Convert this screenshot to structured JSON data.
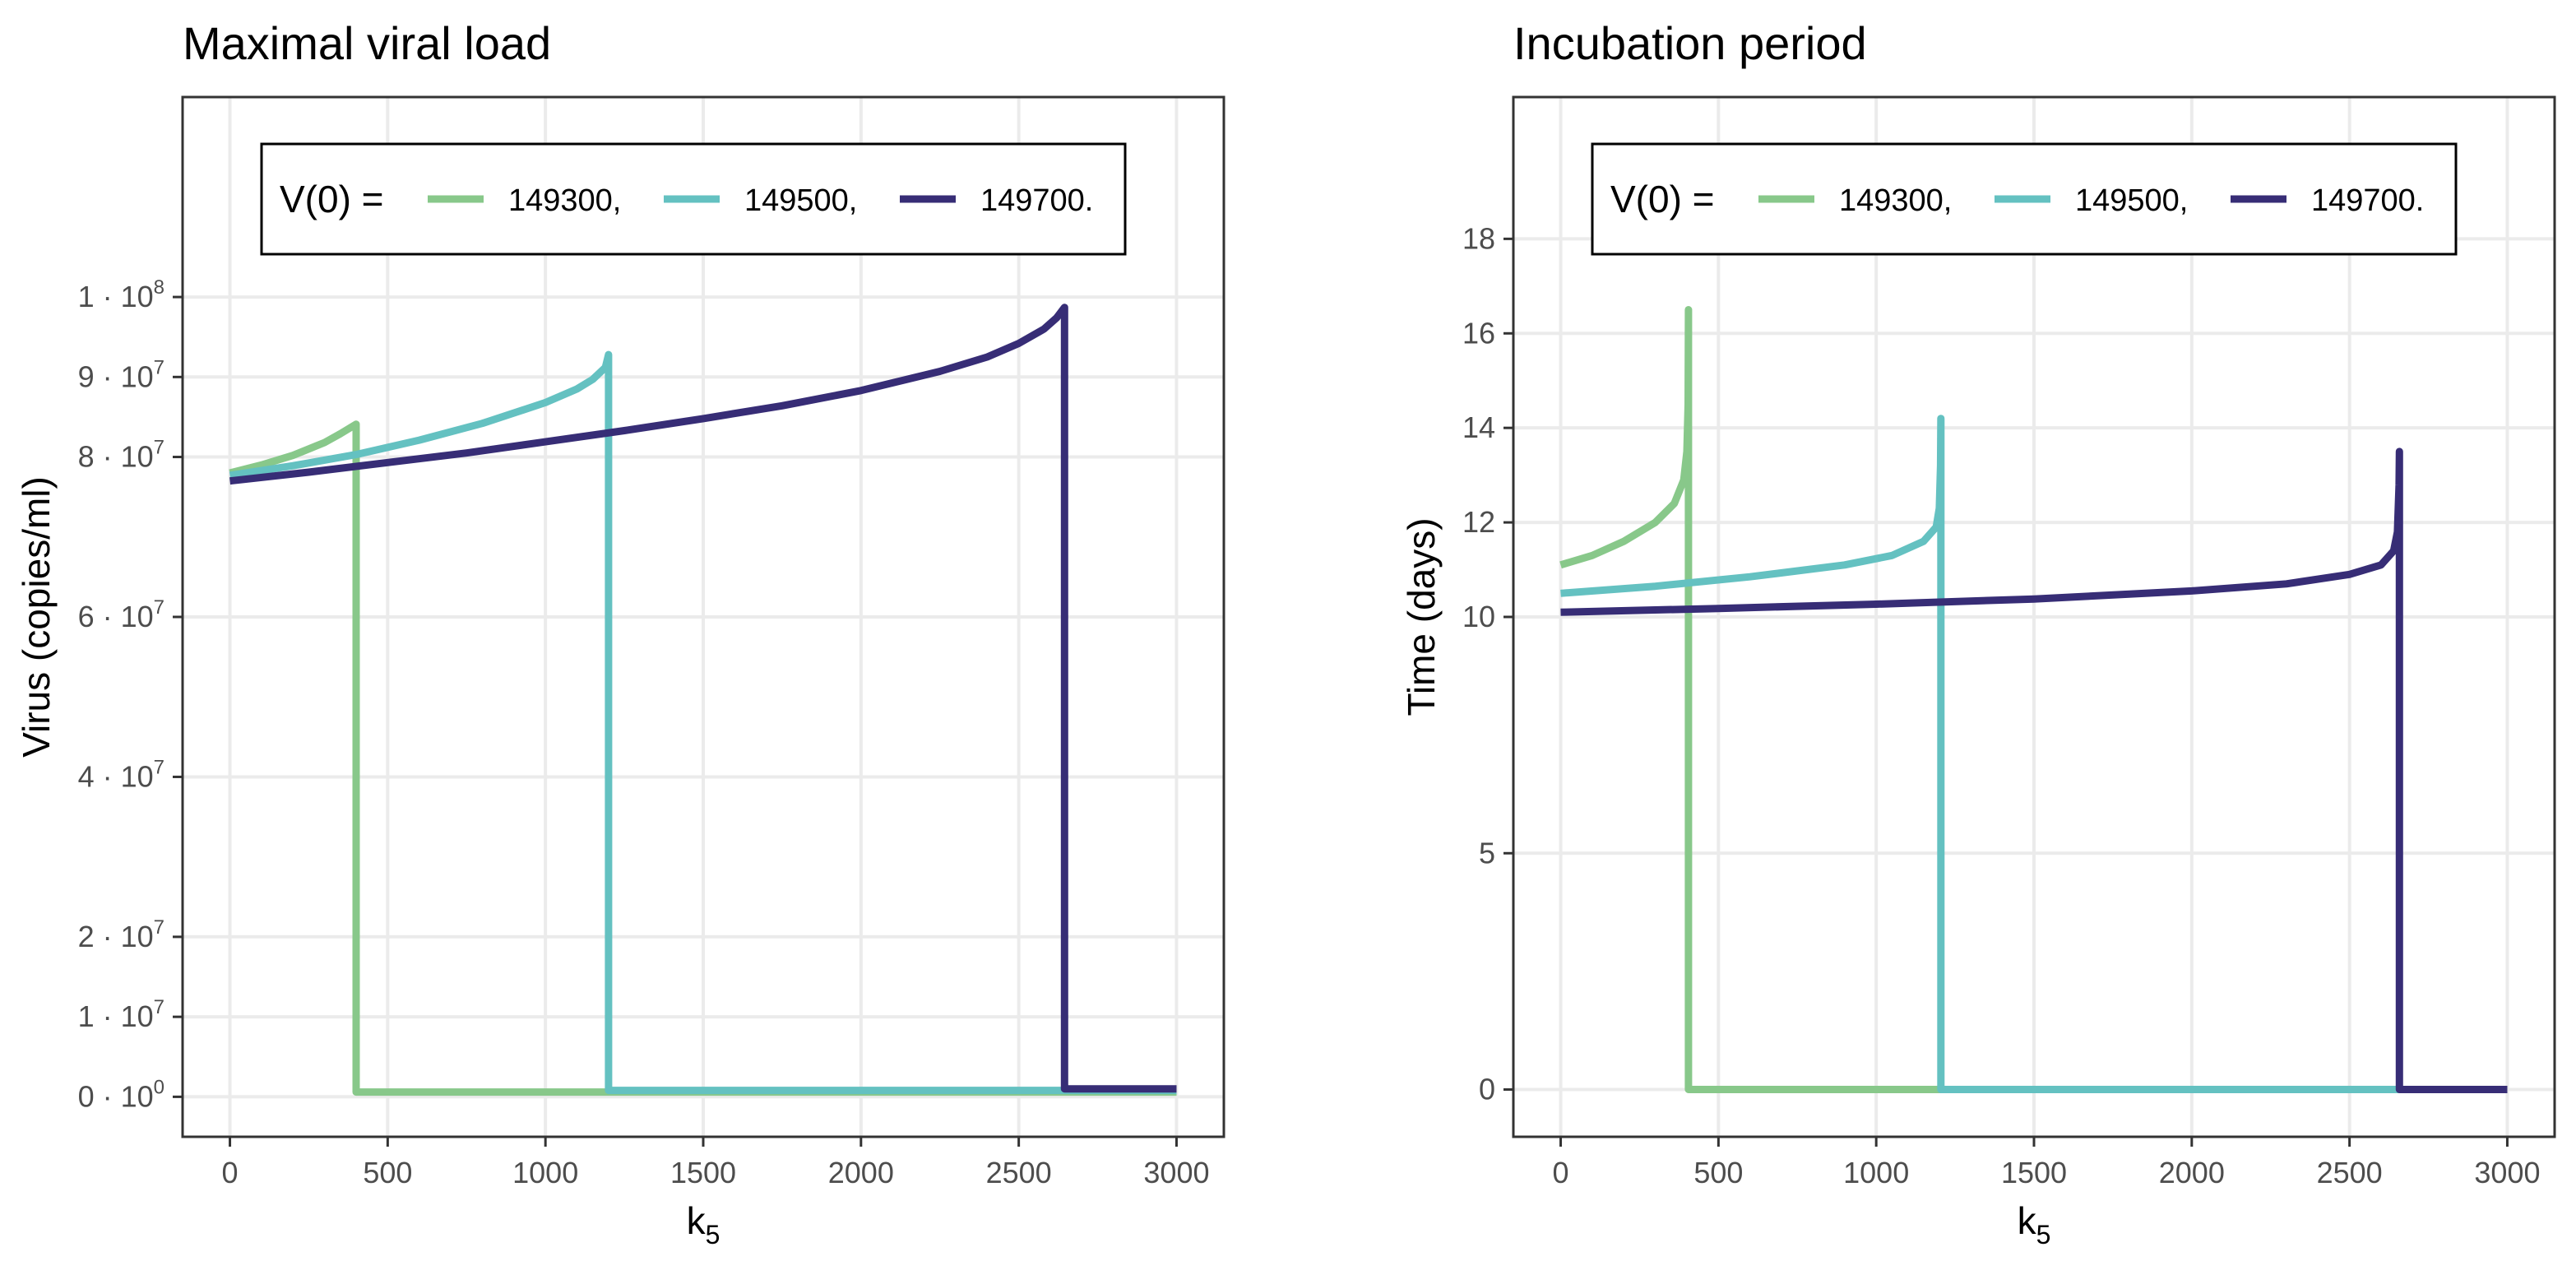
{
  "chart_data": [
    {
      "type": "line",
      "title": "Maximal viral load",
      "xlabel": "k",
      "xlabel_sub": "5",
      "ylabel": "Virus (copies/ml)",
      "xlim": [
        -150,
        3150
      ],
      "ylim": [
        -5000000,
        125000000
      ],
      "x_ticks": [
        0,
        500,
        1000,
        1500,
        2000,
        2500,
        3000
      ],
      "y_ticks": [
        {
          "value": 0,
          "mant": "0",
          "exp": "0"
        },
        {
          "value": 10000000,
          "mant": "1",
          "exp": "7"
        },
        {
          "value": 20000000,
          "mant": "2",
          "exp": "7"
        },
        {
          "value": 40000000,
          "mant": "4",
          "exp": "7"
        },
        {
          "value": 60000000,
          "mant": "6",
          "exp": "7"
        },
        {
          "value": 80000000,
          "mant": "8",
          "exp": "7"
        },
        {
          "value": 90000000,
          "mant": "9",
          "exp": "7"
        },
        {
          "value": 100000000,
          "mant": "1",
          "exp": "8"
        }
      ],
      "y_tick_dot": "·",
      "y_tick_base": "10",
      "legend": {
        "title": "V(0) =",
        "labels": [
          "149300,",
          "149500,",
          "149700."
        ],
        "position": "top-center"
      },
      "series": [
        {
          "name": "149300",
          "color": "#88c88a",
          "x": [
            0,
            100,
            200,
            300,
            350,
            400,
            400,
            1000,
            3000
          ],
          "y": [
            78000000,
            79000000,
            80200000,
            81800000,
            82900000,
            84100000,
            600000,
            600000,
            600000
          ]
        },
        {
          "name": "149500",
          "color": "#64c1c1",
          "x": [
            0,
            200,
            400,
            600,
            800,
            1000,
            1100,
            1150,
            1190,
            1200,
            1200,
            2000,
            3000
          ],
          "y": [
            77700000,
            78900000,
            80300000,
            82100000,
            84200000,
            86800000,
            88500000,
            89700000,
            91200000,
            92800000,
            800000,
            800000,
            800000
          ]
        },
        {
          "name": "149700",
          "color": "#372d76",
          "x": [
            0,
            250,
            500,
            750,
            1000,
            1250,
            1500,
            1750,
            2000,
            2250,
            2400,
            2500,
            2580,
            2620,
            2645,
            2645,
            2800,
            3000
          ],
          "y": [
            77000000,
            78100000,
            79300000,
            80500000,
            81900000,
            83300000,
            84800000,
            86400000,
            88300000,
            90700000,
            92500000,
            94200000,
            96000000,
            97400000,
            98700000,
            1000000,
            1000000,
            1000000
          ]
        }
      ]
    },
    {
      "type": "line",
      "title": "Incubation period",
      "xlabel": "k",
      "xlabel_sub": "5",
      "ylabel": "Time (days)",
      "xlim": [
        -150,
        3150
      ],
      "ylim": [
        -1,
        21
      ],
      "x_ticks": [
        0,
        500,
        1000,
        1500,
        2000,
        2500,
        3000
      ],
      "y_ticks": [
        {
          "value": 0,
          "label": "0"
        },
        {
          "value": 5,
          "label": "5"
        },
        {
          "value": 10,
          "label": "10"
        },
        {
          "value": 12,
          "label": "12"
        },
        {
          "value": 14,
          "label": "14"
        },
        {
          "value": 16,
          "label": "16"
        },
        {
          "value": 18,
          "label": "18"
        }
      ],
      "legend": {
        "title": "V(0) =",
        "labels": [
          "149300,",
          "149500,",
          "149700."
        ],
        "position": "top-center"
      },
      "series": [
        {
          "name": "149300",
          "color": "#88c88a",
          "x": [
            0,
            100,
            200,
            300,
            360,
            390,
            400,
            404,
            405,
            405,
            1000,
            3000
          ],
          "y": [
            11.1,
            11.3,
            11.6,
            12.0,
            12.4,
            12.9,
            13.5,
            14.5,
            16.5,
            0,
            0,
            0
          ]
        },
        {
          "name": "149500",
          "color": "#64c1c1",
          "x": [
            0,
            300,
            600,
            900,
            1050,
            1150,
            1190,
            1200,
            1204,
            1205,
            1205,
            2000,
            3000
          ],
          "y": [
            10.5,
            10.65,
            10.85,
            11.1,
            11.3,
            11.6,
            11.9,
            12.3,
            13.2,
            14.2,
            0,
            0,
            0
          ]
        },
        {
          "name": "149700",
          "color": "#372d76",
          "x": [
            0,
            500,
            1000,
            1500,
            2000,
            2300,
            2500,
            2600,
            2640,
            2652,
            2657,
            2658,
            2658,
            3000
          ],
          "y": [
            10.1,
            10.18,
            10.27,
            10.38,
            10.55,
            10.7,
            10.9,
            11.1,
            11.4,
            11.8,
            12.8,
            13.5,
            0,
            0
          ]
        }
      ]
    }
  ]
}
